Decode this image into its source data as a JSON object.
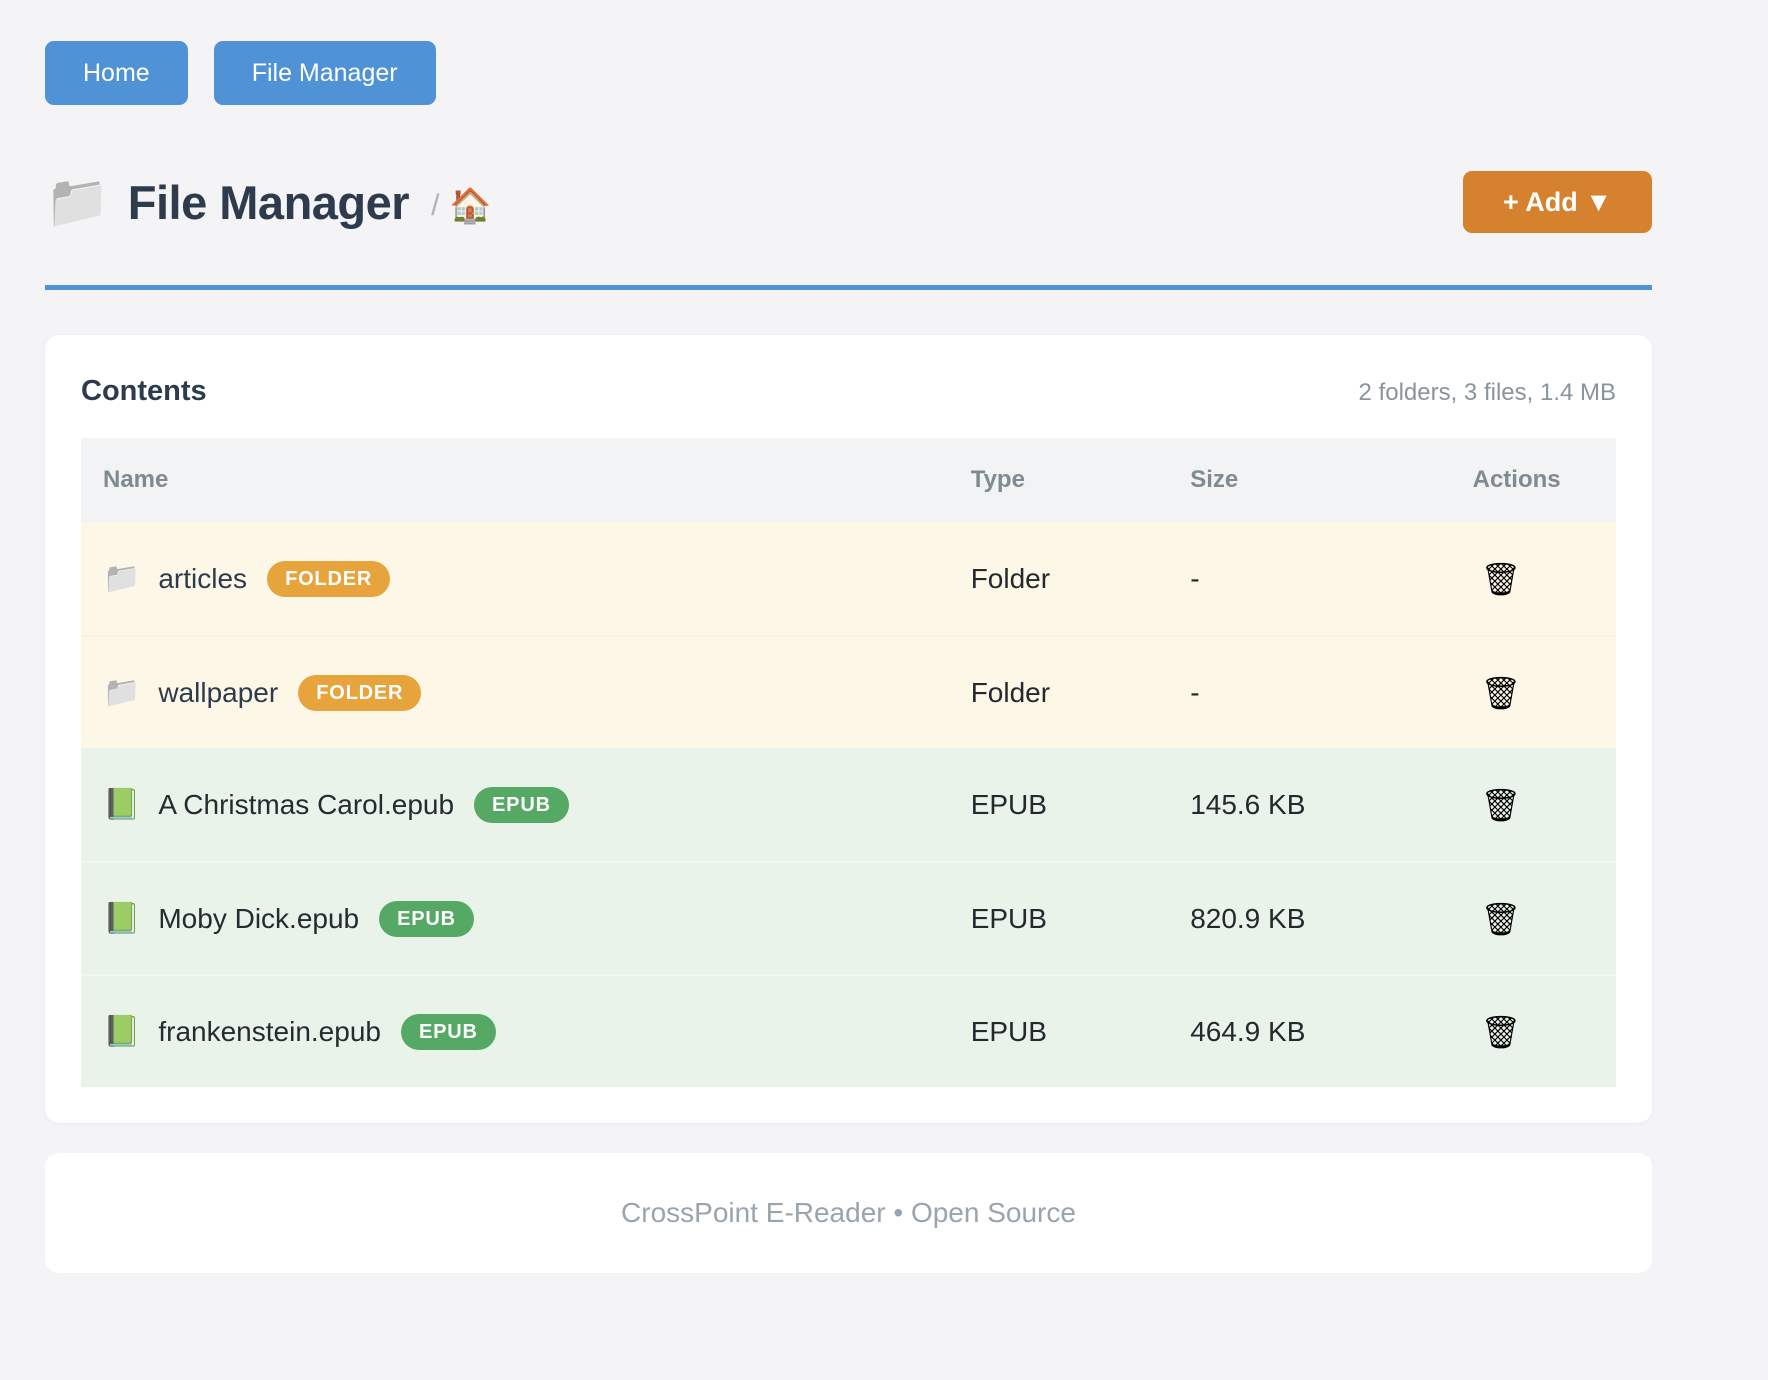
{
  "nav": {
    "items": [
      {
        "label": "Home"
      },
      {
        "label": "File Manager"
      }
    ]
  },
  "header": {
    "folder_icon": "📁",
    "title": "File Manager",
    "breadcrumb_separator": "/",
    "home_icon": "🏠",
    "add_button_label": "+ Add ▼"
  },
  "contents": {
    "heading": "Contents",
    "summary": "2 folders, 3 files, 1.4 MB",
    "columns": {
      "name": "Name",
      "type": "Type",
      "size": "Size",
      "actions": "Actions"
    },
    "rows": [
      {
        "icon": "📁",
        "name": "articles",
        "badge": "FOLDER",
        "type": "Folder",
        "size": "-",
        "action_icon": "🗑"
      },
      {
        "icon": "📁",
        "name": "wallpaper",
        "badge": "FOLDER",
        "type": "Folder",
        "size": "-",
        "action_icon": "🗑"
      },
      {
        "icon": "📗",
        "name": "A Christmas Carol.epub",
        "badge": "EPUB",
        "type": "EPUB",
        "size": "145.6 KB",
        "action_icon": "🗑"
      },
      {
        "icon": "📗",
        "name": "Moby Dick.epub",
        "badge": "EPUB",
        "type": "EPUB",
        "size": "820.9 KB",
        "action_icon": "🗑"
      },
      {
        "icon": "📗",
        "name": "frankenstein.epub",
        "badge": "EPUB",
        "type": "EPUB",
        "size": "464.9 KB",
        "action_icon": "🗑"
      }
    ]
  },
  "footer": {
    "text": "CrossPoint E-Reader • Open Source"
  },
  "colors": {
    "accent_blue": "#4f93d6",
    "accent_orange": "#d5812e",
    "badge_folder": "#e7a33c",
    "badge_epub": "#55a964",
    "row_folder_bg": "#fdf7e8",
    "row_epub_bg": "#e9f3ea",
    "page_bg": "#f4f4f6"
  }
}
